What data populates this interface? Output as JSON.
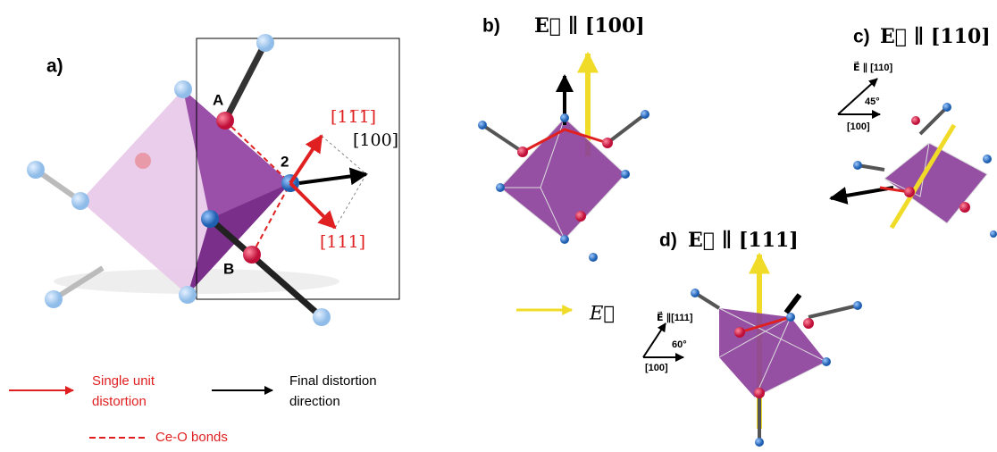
{
  "panel_a": {
    "label": "a)",
    "atom_labels": [
      "A",
      "B",
      "2"
    ],
    "directions": [
      "[11̅1̅]",
      "[100]",
      "[111]"
    ]
  },
  "panel_b": {
    "label": "b)",
    "title": "E⃗ ∥ [100]",
    "field_label": "E⃗"
  },
  "panel_c": {
    "label": "c)",
    "title": "E⃗ ∥ [110]",
    "inset": {
      "field": "E⃗ ∥ [110]",
      "angle": "45°",
      "axis": "[100]"
    }
  },
  "panel_d": {
    "label": "d)",
    "title": "E⃗ ∥ [111]",
    "inset": {
      "field": "E⃗ ∥[111]",
      "angle": "60°",
      "axis": "[100]"
    }
  },
  "legend": {
    "single_unit": [
      "Single unit",
      "distortion"
    ],
    "final": [
      "Final distortion",
      "direction"
    ],
    "bonds": "Ce-O bonds"
  }
}
